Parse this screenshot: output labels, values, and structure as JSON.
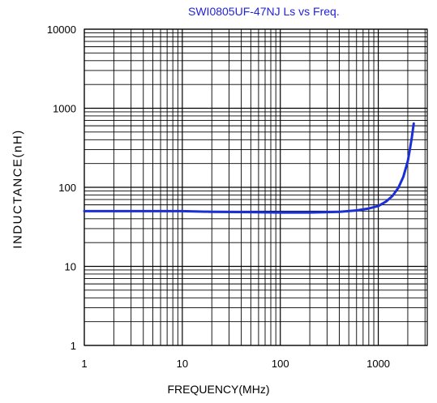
{
  "chart_data": {
    "type": "line",
    "title": "SWI0805UF-47NJ Ls vs Freq.",
    "xlabel": "FREQUENCY(MHz)",
    "ylabel": "INDUCTANCE(nH)",
    "xscale": "log",
    "yscale": "log",
    "xlim": [
      1,
      3162
    ],
    "ylim": [
      1,
      10000
    ],
    "xticks": [
      1,
      10,
      100,
      1000
    ],
    "xtick_labels": [
      "1",
      "10",
      "100",
      "1000"
    ],
    "yticks": [
      1,
      10,
      100,
      1000,
      10000
    ],
    "ytick_labels": [
      "1",
      "10",
      "100",
      "1000",
      "10000"
    ],
    "grid": true,
    "series_color": "#1a2fd6",
    "series": [
      {
        "x": [
          1,
          1.5,
          2,
          3,
          5,
          10,
          20,
          50,
          100,
          200,
          400,
          600,
          800,
          1000,
          1200,
          1400,
          1600,
          1800,
          2000,
          2100,
          2200,
          2300
        ],
        "y": [
          50,
          50,
          50,
          50,
          50,
          50,
          49,
          48.5,
          48,
          48,
          49,
          51,
          54,
          58,
          66,
          78,
          98,
          135,
          215,
          300,
          430,
          640
        ]
      }
    ]
  }
}
